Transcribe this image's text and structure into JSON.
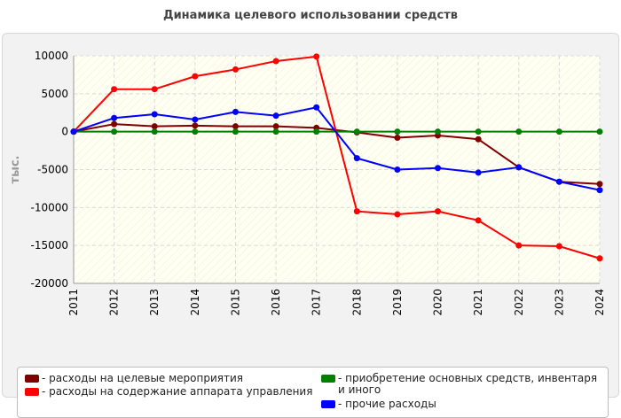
{
  "title": "Динамика целевого использовании средств",
  "chart_data": {
    "type": "line",
    "title": "Динамика целевого использовании средств",
    "xlabel": "",
    "ylabel": "тыс.",
    "x": [
      "2011",
      "2012",
      "2013",
      "2014",
      "2015",
      "2016",
      "2017",
      "2018",
      "2019",
      "2020",
      "2021",
      "2022",
      "2023",
      "2024"
    ],
    "ylim": [
      -20000,
      10000
    ],
    "yticks": [
      10000,
      5000,
      0,
      -5000,
      -10000,
      -15000,
      -20000
    ],
    "grid": true,
    "legend_position": "bottom",
    "series": [
      {
        "name": "расходы на целевые мероприятия",
        "color": "#800000",
        "values": [
          0,
          1000,
          700,
          800,
          700,
          700,
          500,
          -100,
          -800,
          -500,
          -1000,
          -4700,
          -6600,
          -6900
        ]
      },
      {
        "name": "расходы на содержание аппарата управления",
        "color": "#ff0000",
        "values": [
          0,
          5600,
          5600,
          7300,
          8200,
          9300,
          9900,
          -10500,
          -10900,
          -10500,
          -11700,
          -15000,
          -15100,
          -16700
        ]
      },
      {
        "name": "приобретение основных средств, инвентаря и иного",
        "color": "#008000",
        "values": [
          0,
          0,
          0,
          0,
          0,
          0,
          0,
          0,
          0,
          0,
          0,
          0,
          0,
          0
        ]
      },
      {
        "name": "прочие расходы",
        "color": "#0000ff",
        "values": [
          0,
          1800,
          2300,
          1600,
          2600,
          2100,
          3200,
          -3500,
          -5000,
          -4800,
          -5400,
          -4700,
          -6600,
          -7700
        ]
      }
    ]
  }
}
